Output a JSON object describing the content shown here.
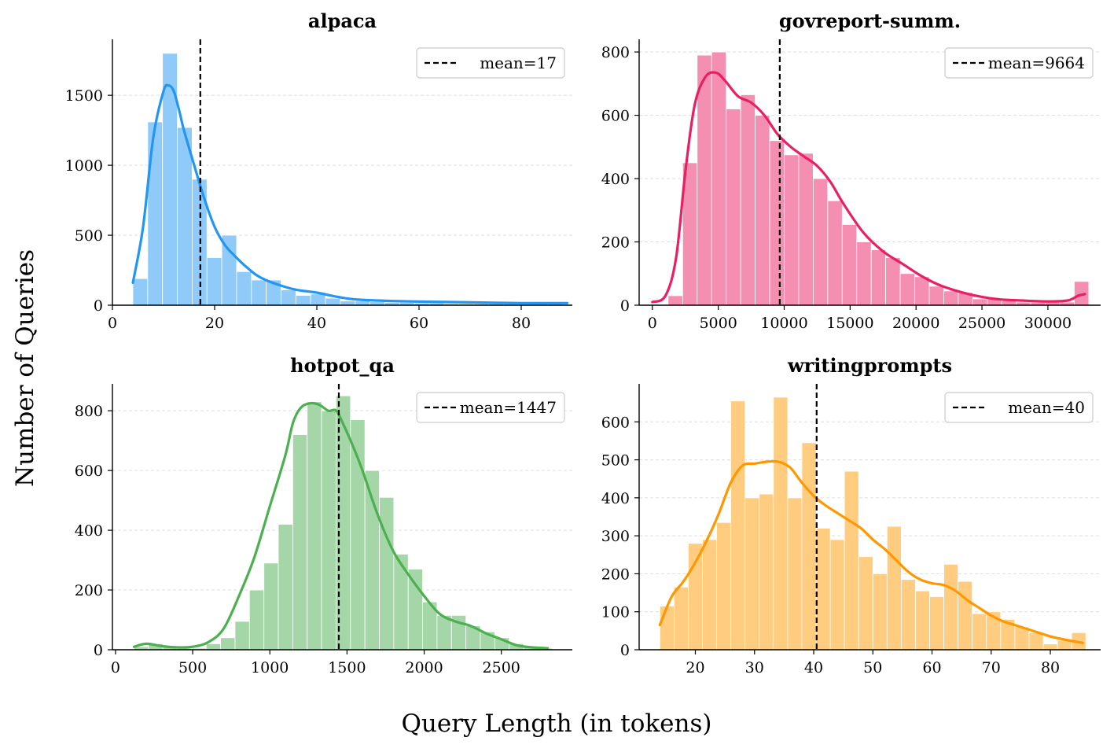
{
  "figure": {
    "xlabel": "Query Length (in tokens)",
    "ylabel": "Number of Queries"
  },
  "chart_data": [
    {
      "type": "bar",
      "title": "alpaca",
      "color": "#2196F3",
      "bar_color": "#90CAF9",
      "xlim": [
        0,
        90
      ],
      "ylim": [
        0,
        1900
      ],
      "xticks": [
        0,
        20,
        40,
        60,
        80
      ],
      "xtick_labels": [
        "0",
        "20",
        "40",
        "60",
        "80"
      ],
      "yticks": [
        0,
        500,
        1000,
        1500
      ],
      "ytick_labels": [
        "0",
        "500",
        "1000",
        "1500"
      ],
      "bin_edges": [
        4,
        6.9,
        9.8,
        12.7,
        15.6,
        18.5,
        21.4,
        24.3,
        27.2,
        30.1,
        33.0,
        35.9,
        38.8,
        41.7,
        44.6,
        47.5,
        50.4,
        53.3,
        56.2,
        59.1,
        62.0,
        64.9,
        67.8,
        70.7,
        73.6,
        76.5,
        79.4,
        82.3,
        85.2,
        88.1
      ],
      "counts": [
        190,
        1310,
        1800,
        1270,
        900,
        340,
        500,
        240,
        180,
        180,
        110,
        70,
        80,
        50,
        30,
        30,
        25,
        20,
        20,
        15,
        15,
        10,
        10,
        10,
        10,
        10,
        10,
        10,
        10
      ],
      "kde_x": [
        4,
        6,
        8,
        10,
        11,
        12,
        13,
        14,
        16,
        18,
        20,
        22,
        24,
        26,
        28,
        30,
        33,
        36,
        40,
        44,
        48,
        55,
        62,
        70,
        80,
        89
      ],
      "kde_y": [
        160,
        560,
        1200,
        1530,
        1570,
        1530,
        1400,
        1250,
        1000,
        760,
        560,
        430,
        350,
        280,
        220,
        180,
        140,
        110,
        90,
        60,
        40,
        30,
        25,
        20,
        15,
        15
      ],
      "mean": 17.2,
      "legend_label": "mean=17"
    },
    {
      "type": "bar",
      "title": "govreport-summ.",
      "color": "#E91E63",
      "bar_color": "#F48FB1",
      "xlim": [
        -1000,
        34000
      ],
      "ylim": [
        0,
        840
      ],
      "xticks": [
        0,
        5000,
        10000,
        15000,
        20000,
        25000,
        30000
      ],
      "xtick_labels": [
        "0",
        "5000",
        "10000",
        "15000",
        "20000",
        "25000",
        "30000"
      ],
      "yticks": [
        0,
        200,
        400,
        600,
        800
      ],
      "ytick_labels": [
        "0",
        "200",
        "400",
        "600",
        "800"
      ],
      "bin_edges": [
        1200,
        2300,
        3400,
        4500,
        5600,
        6700,
        7800,
        8900,
        10000,
        11100,
        12200,
        13300,
        14400,
        15500,
        16600,
        17700,
        18800,
        19900,
        21000,
        22100,
        23200,
        24300,
        25400,
        26500,
        27600,
        28700,
        29800,
        30900,
        32000,
        33100
      ],
      "counts": [
        30,
        450,
        790,
        800,
        620,
        665,
        600,
        520,
        475,
        480,
        400,
        330,
        255,
        200,
        175,
        150,
        100,
        90,
        60,
        45,
        40,
        20,
        20,
        15,
        10,
        10,
        10,
        10,
        75
      ],
      "kde_x": [
        0,
        1000,
        1800,
        2500,
        3200,
        4000,
        4800,
        5500,
        6500,
        7500,
        8500,
        9500,
        10500,
        11500,
        12500,
        13500,
        14500,
        16000,
        17500,
        19000,
        20500,
        22000,
        24000,
        26000,
        28000,
        30000,
        31500,
        32300,
        32800
      ],
      "kde_y": [
        10,
        30,
        150,
        420,
        630,
        720,
        735,
        710,
        660,
        640,
        600,
        540,
        500,
        470,
        440,
        390,
        320,
        230,
        170,
        130,
        90,
        60,
        35,
        20,
        15,
        12,
        15,
        30,
        35
      ],
      "mean": 9664,
      "legend_label": "mean=9664"
    },
    {
      "type": "bar",
      "title": "hotpot_qa",
      "color": "#4CAF50",
      "bar_color": "#A5D6A7",
      "xlim": [
        -20,
        2960
      ],
      "ylim": [
        0,
        890
      ],
      "xticks": [
        0,
        500,
        1000,
        1500,
        2000,
        2500
      ],
      "xtick_labels": [
        "0",
        "500",
        "1000",
        "1500",
        "2000",
        "2500"
      ],
      "yticks": [
        0,
        200,
        400,
        600,
        800
      ],
      "ytick_labels": [
        "0",
        "200",
        "400",
        "600",
        "800"
      ],
      "bin_edges": [
        120,
        213.5,
        307,
        400.5,
        494,
        587.5,
        681,
        774.5,
        868,
        961.5,
        1055,
        1148.5,
        1242,
        1335.5,
        1429,
        1522.5,
        1616,
        1709.5,
        1803,
        1896.5,
        1990,
        2083.5,
        2177,
        2270.5,
        2364,
        2457.5,
        2551,
        2644.5,
        2738,
        2831.5
      ],
      "counts": [
        10,
        20,
        10,
        5,
        5,
        20,
        40,
        95,
        200,
        290,
        420,
        720,
        830,
        800,
        850,
        770,
        600,
        510,
        320,
        270,
        160,
        115,
        115,
        80,
        60,
        40,
        20,
        10,
        5
      ],
      "kde_x": [
        120,
        200,
        300,
        400,
        500,
        600,
        700,
        800,
        900,
        1000,
        1100,
        1150,
        1200,
        1260,
        1320,
        1380,
        1430,
        1480,
        1540,
        1600,
        1700,
        1800,
        1900,
        2000,
        2100,
        2200,
        2300,
        2400,
        2500,
        2600,
        2700,
        2800
      ],
      "kde_y": [
        10,
        20,
        12,
        8,
        10,
        25,
        70,
        180,
        310,
        480,
        650,
        760,
        810,
        825,
        820,
        800,
        800,
        750,
        680,
        600,
        450,
        330,
        250,
        180,
        120,
        95,
        80,
        55,
        35,
        15,
        8,
        5
      ],
      "mean": 1447,
      "legend_label": "mean=1447"
    },
    {
      "type": "bar",
      "title": "writingprompts",
      "color": "#FF9800",
      "bar_color": "#FFCC80",
      "xlim": [
        10.5,
        88.5
      ],
      "ylim": [
        0,
        700
      ],
      "xticks": [
        20,
        30,
        40,
        50,
        60,
        70,
        80
      ],
      "xtick_labels": [
        "20",
        "30",
        "40",
        "50",
        "60",
        "70",
        "80"
      ],
      "yticks": [
        0,
        100,
        200,
        300,
        400,
        500,
        600
      ],
      "ytick_labels": [
        "0",
        "100",
        "200",
        "300",
        "400",
        "500",
        "600"
      ],
      "bin_edges": [
        14,
        16.4,
        18.8,
        21.2,
        23.6,
        26.0,
        28.4,
        30.8,
        33.2,
        35.6,
        38.0,
        40.4,
        42.8,
        45.2,
        47.6,
        50.0,
        52.4,
        54.8,
        57.2,
        59.6,
        62.0,
        64.4,
        66.8,
        69.2,
        71.6,
        74.0,
        76.4,
        78.8,
        81.2,
        83.6,
        86.0
      ],
      "counts": [
        115,
        165,
        280,
        290,
        335,
        655,
        400,
        410,
        665,
        400,
        545,
        320,
        290,
        470,
        245,
        200,
        325,
        185,
        155,
        140,
        225,
        180,
        95,
        100,
        80,
        60,
        45,
        15,
        25,
        45
      ],
      "kde_x": [
        14,
        16,
        18,
        20,
        22,
        24,
        26,
        28,
        30,
        32,
        34,
        36,
        38,
        40,
        42,
        44,
        46,
        48,
        50,
        52,
        54,
        56,
        58,
        60,
        62,
        64,
        66,
        68,
        70,
        72,
        74,
        76,
        78,
        80,
        82,
        84,
        85.5
      ],
      "kde_y": [
        65,
        140,
        180,
        230,
        290,
        360,
        440,
        485,
        490,
        495,
        495,
        480,
        440,
        405,
        380,
        360,
        340,
        320,
        290,
        265,
        235,
        205,
        185,
        175,
        170,
        155,
        130,
        110,
        90,
        75,
        65,
        55,
        45,
        35,
        28,
        22,
        18
      ],
      "mean": 40.5,
      "legend_label": "mean=40"
    }
  ]
}
